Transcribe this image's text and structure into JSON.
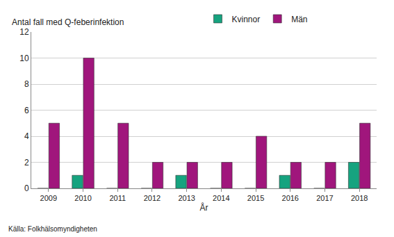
{
  "chart_data": {
    "type": "bar",
    "ylabel": "Antal fall med Q-feberinfektion",
    "xlabel": "År",
    "source": "Källa: Folkhälsomyndigheten",
    "categories": [
      "2009",
      "2010",
      "2011",
      "2012",
      "2013",
      "2014",
      "2015",
      "2016",
      "2017",
      "2018"
    ],
    "series": [
      {
        "name": "Kvinnor",
        "color": "#16a37f",
        "values": [
          0,
          1,
          0,
          0,
          1,
          0,
          0,
          1,
          0,
          2
        ]
      },
      {
        "name": "Män",
        "color": "#a0167c",
        "values": [
          5,
          10,
          5,
          2,
          2,
          2,
          4,
          2,
          2,
          5
        ]
      }
    ],
    "ylim": [
      0,
      12
    ],
    "yticks": [
      0,
      2,
      4,
      6,
      8,
      10,
      12
    ],
    "grid": true,
    "legend": "top"
  }
}
